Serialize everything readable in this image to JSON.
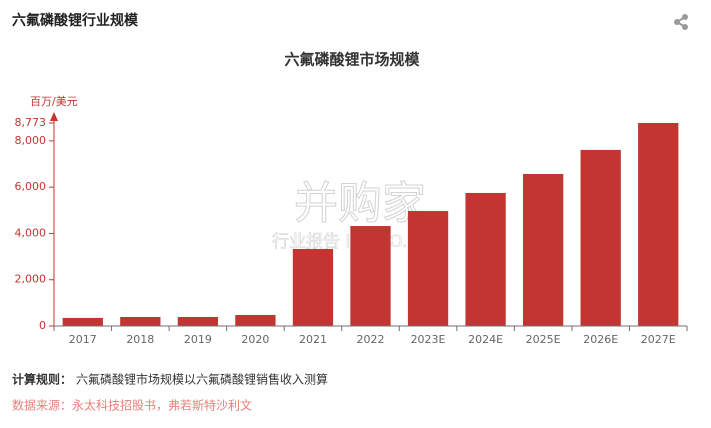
{
  "header": {
    "title": "六氟磷酸锂行业规模"
  },
  "chart_data": {
    "type": "bar",
    "title": "六氟磷酸锂市场规模",
    "y_label": "百万/美元",
    "categories": [
      "2017",
      "2018",
      "2019",
      "2020",
      "2021",
      "2022",
      "2023E",
      "2024E",
      "2025E",
      "2026E",
      "2027E"
    ],
    "values": [
      350,
      390,
      390,
      475,
      3330,
      4320,
      4970,
      5750,
      6570,
      7610,
      8773
    ],
    "color": "#c23531",
    "grid": false,
    "ylim": [
      0,
      8773
    ],
    "yticks": [
      0,
      {
        "value": 2000,
        "label": "2,000"
      },
      {
        "value": 4000,
        "label": "4,000"
      },
      {
        "value": 6000,
        "label": "6,000"
      },
      {
        "value": 8000,
        "label": "8,000"
      },
      {
        "value": 8773,
        "label": "8,773"
      }
    ]
  },
  "watermark": {
    "brand": "并购家",
    "sub": "行业报告 IPOIPO.CN"
  },
  "footer": {
    "rule_label": "计算规则：",
    "rule": "六氟磷酸锂市场规模以六氟磷酸锂销售收入测算",
    "source": "数据来源：永太科技招股书，弗若斯特沙利文"
  }
}
